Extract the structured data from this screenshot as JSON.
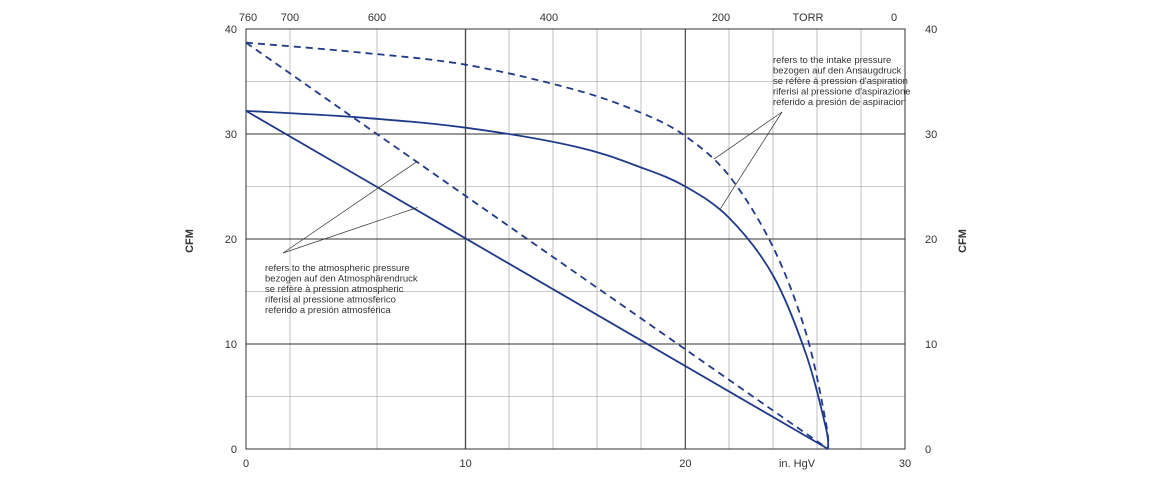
{
  "chart_data": {
    "type": "line",
    "x_axis_bottom": {
      "label": "in. HgV",
      "ticks": [
        0,
        10,
        20,
        30
      ],
      "range": [
        0,
        30
      ]
    },
    "x_axis_top": {
      "label": "TORR",
      "ticks": [
        "760",
        "700",
        "600",
        "400",
        "200",
        "0"
      ]
    },
    "y_axis": {
      "label": "CFM",
      "ticks": [
        0,
        10,
        20,
        30,
        40
      ],
      "range": [
        0,
        40
      ]
    },
    "grid": true,
    "series": [
      {
        "style": "dashed",
        "points": [
          [
            0,
            38.7
          ],
          [
            5,
            37.8
          ],
          [
            10,
            36.6
          ],
          [
            15,
            34.2
          ],
          [
            18,
            32.0
          ],
          [
            20,
            29.8
          ],
          [
            22,
            26.0
          ],
          [
            24,
            19.2
          ],
          [
            25.5,
            11.0
          ],
          [
            26.4,
            2.5
          ],
          [
            26.5,
            0
          ]
        ]
      },
      {
        "style": "solid",
        "points": [
          [
            0,
            32.2
          ],
          [
            5,
            31.6
          ],
          [
            10,
            30.6
          ],
          [
            15,
            28.8
          ],
          [
            18,
            26.8
          ],
          [
            20,
            25.0
          ],
          [
            22,
            22.0
          ],
          [
            24,
            16.5
          ],
          [
            25.5,
            9.0
          ],
          [
            26.4,
            2.0
          ],
          [
            26.5,
            0
          ]
        ]
      },
      {
        "style": "dashed",
        "points": [
          [
            0,
            38.7
          ],
          [
            26.5,
            0
          ]
        ]
      },
      {
        "style": "solid",
        "points": [
          [
            0,
            32.2
          ],
          [
            26.5,
            0
          ]
        ]
      }
    ],
    "annotations": [
      {
        "lines": [
          "refers to the intake pressure",
          "bezogen auf den Ansaugdruck",
          "se réfère à pression d'aspiration",
          "riferisi al pressione d'aspirazione",
          "referido a presión de aspiracion"
        ],
        "targets": [
          [
            21.3,
            27.6
          ],
          [
            21.6,
            22.9
          ]
        ]
      },
      {
        "lines": [
          "refers to the atmospheric pressure",
          "bezogen auf den Atmosphärendruck",
          "se réfère à pression atmospheric",
          "riferisi al pressione atmosferico",
          "referido a presión atmosférica"
        ],
        "targets": [
          [
            7.8,
            27.4
          ],
          [
            7.8,
            23.0
          ]
        ]
      }
    ]
  },
  "colors": {
    "curve": "#1f3a8a",
    "grid": "#333333",
    "minor_grid": "#999999",
    "text": "#333333"
  }
}
